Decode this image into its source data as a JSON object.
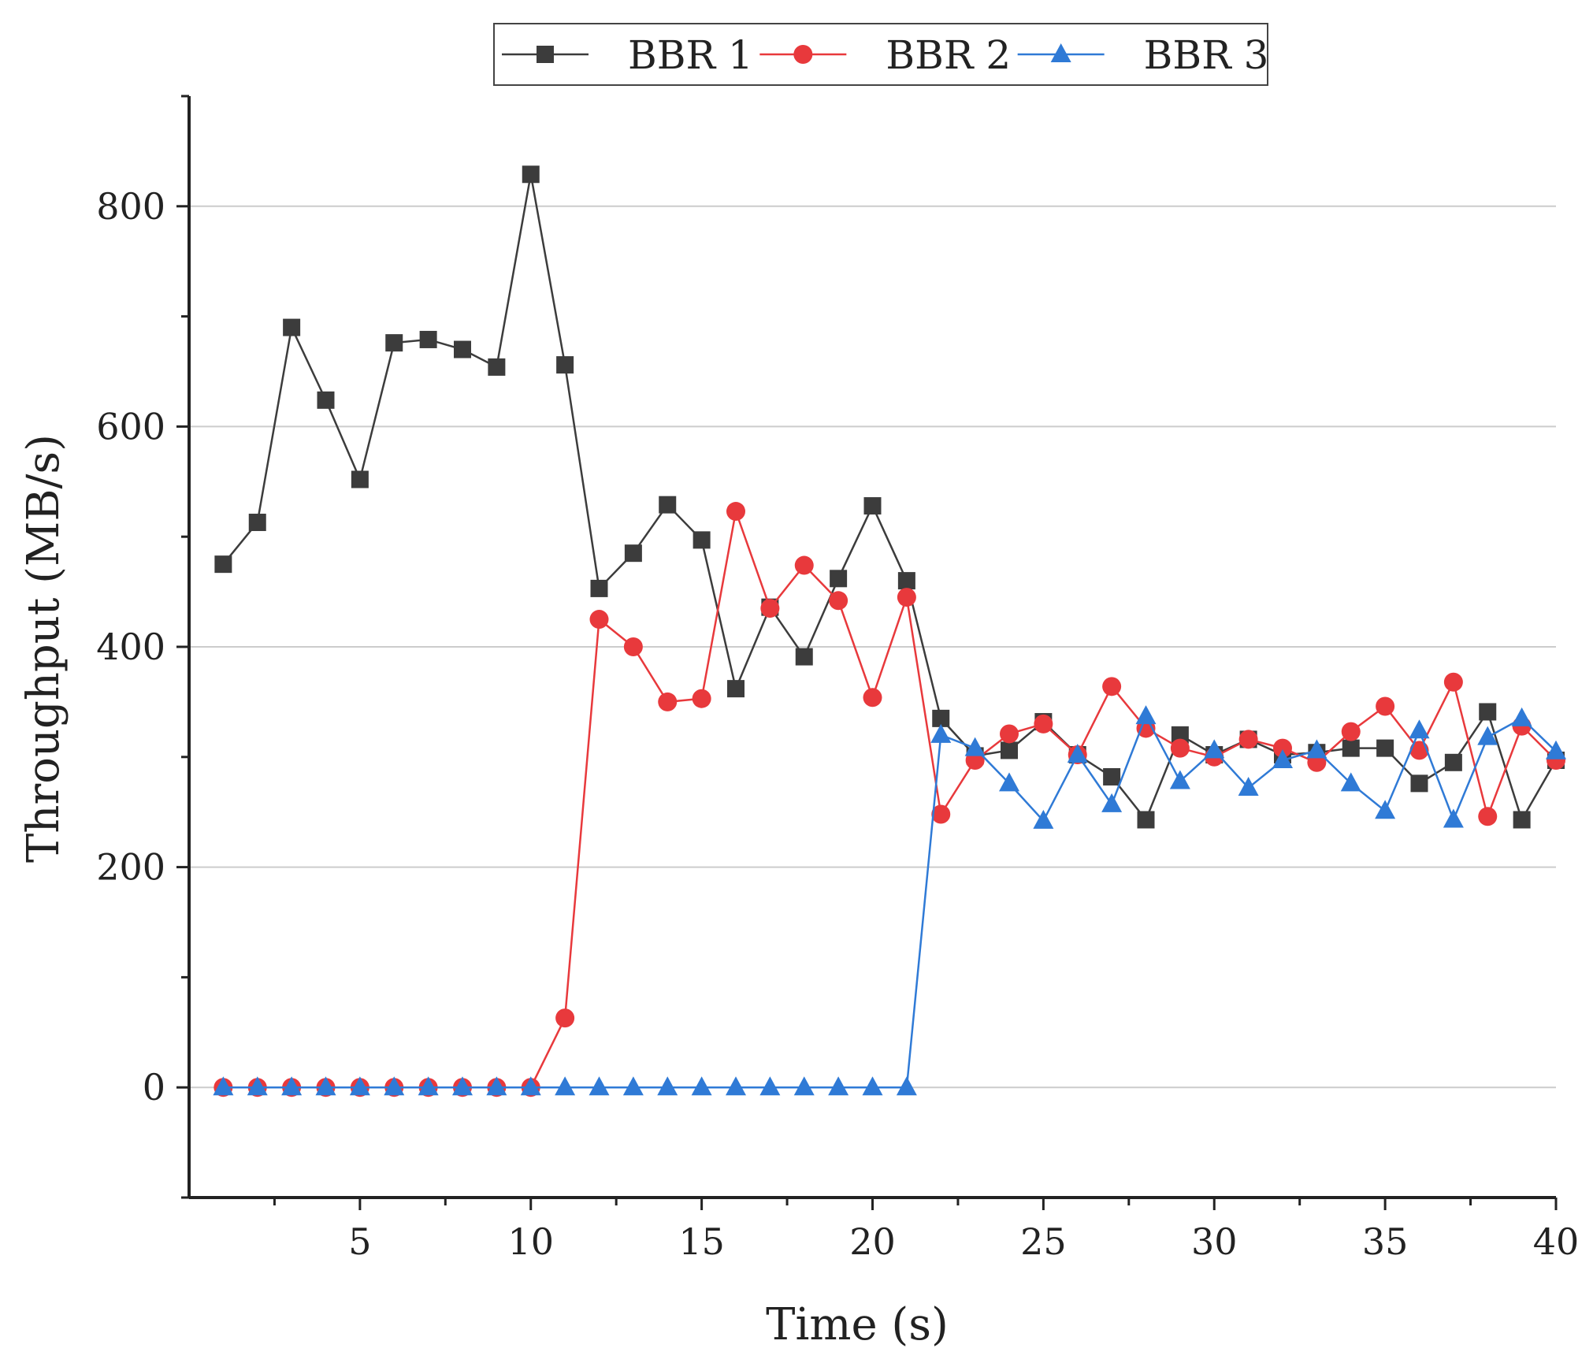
{
  "chart_data": {
    "type": "line",
    "title": "",
    "xlabel": "Time (s)",
    "ylabel": "Throughput (MB/s)",
    "xlim": [
      0,
      40
    ],
    "ylim": [
      -100,
      900
    ],
    "x_ticks": [
      5,
      10,
      15,
      20,
      25,
      30,
      35,
      40
    ],
    "y_ticks": [
      0,
      200,
      400,
      600,
      800
    ],
    "grid": true,
    "legend_position": "top-center",
    "x": [
      1,
      2,
      3,
      4,
      5,
      6,
      7,
      8,
      9,
      10,
      11,
      12,
      13,
      14,
      15,
      16,
      17,
      18,
      19,
      20,
      21,
      22,
      23,
      24,
      25,
      26,
      27,
      28,
      29,
      30,
      31,
      32,
      33,
      34,
      35,
      36,
      37,
      38,
      39,
      40
    ],
    "series": [
      {
        "name": "BBR 1",
        "color": "#3c3c3c",
        "marker": "square",
        "values": [
          475,
          513,
          690,
          624,
          552,
          676,
          679,
          670,
          654,
          829,
          656,
          453,
          485,
          529,
          497,
          362,
          436,
          391,
          462,
          528,
          460,
          335,
          301,
          306,
          332,
          302,
          282,
          243,
          320,
          302,
          316,
          302,
          304,
          308,
          308,
          276,
          295,
          341,
          243,
          297
        ]
      },
      {
        "name": "BBR 2",
        "color": "#e8393c",
        "marker": "circle",
        "values": [
          0,
          0,
          0,
          0,
          0,
          0,
          0,
          0,
          0,
          0,
          63,
          425,
          400,
          350,
          353,
          523,
          435,
          474,
          442,
          354,
          445,
          248,
          297,
          321,
          330,
          302,
          364,
          326,
          308,
          300,
          316,
          308,
          295,
          323,
          346,
          306,
          368,
          246,
          328,
          297
        ]
      },
      {
        "name": "BBR 3",
        "color": "#2f7ad6",
        "marker": "triangle",
        "values": [
          0,
          0,
          0,
          0,
          0,
          0,
          0,
          0,
          0,
          0,
          0,
          0,
          0,
          0,
          0,
          0,
          0,
          0,
          0,
          0,
          0,
          320,
          308,
          276,
          242,
          302,
          257,
          337,
          278,
          306,
          272,
          297,
          306,
          276,
          251,
          324,
          243,
          318,
          335,
          305
        ]
      }
    ]
  }
}
